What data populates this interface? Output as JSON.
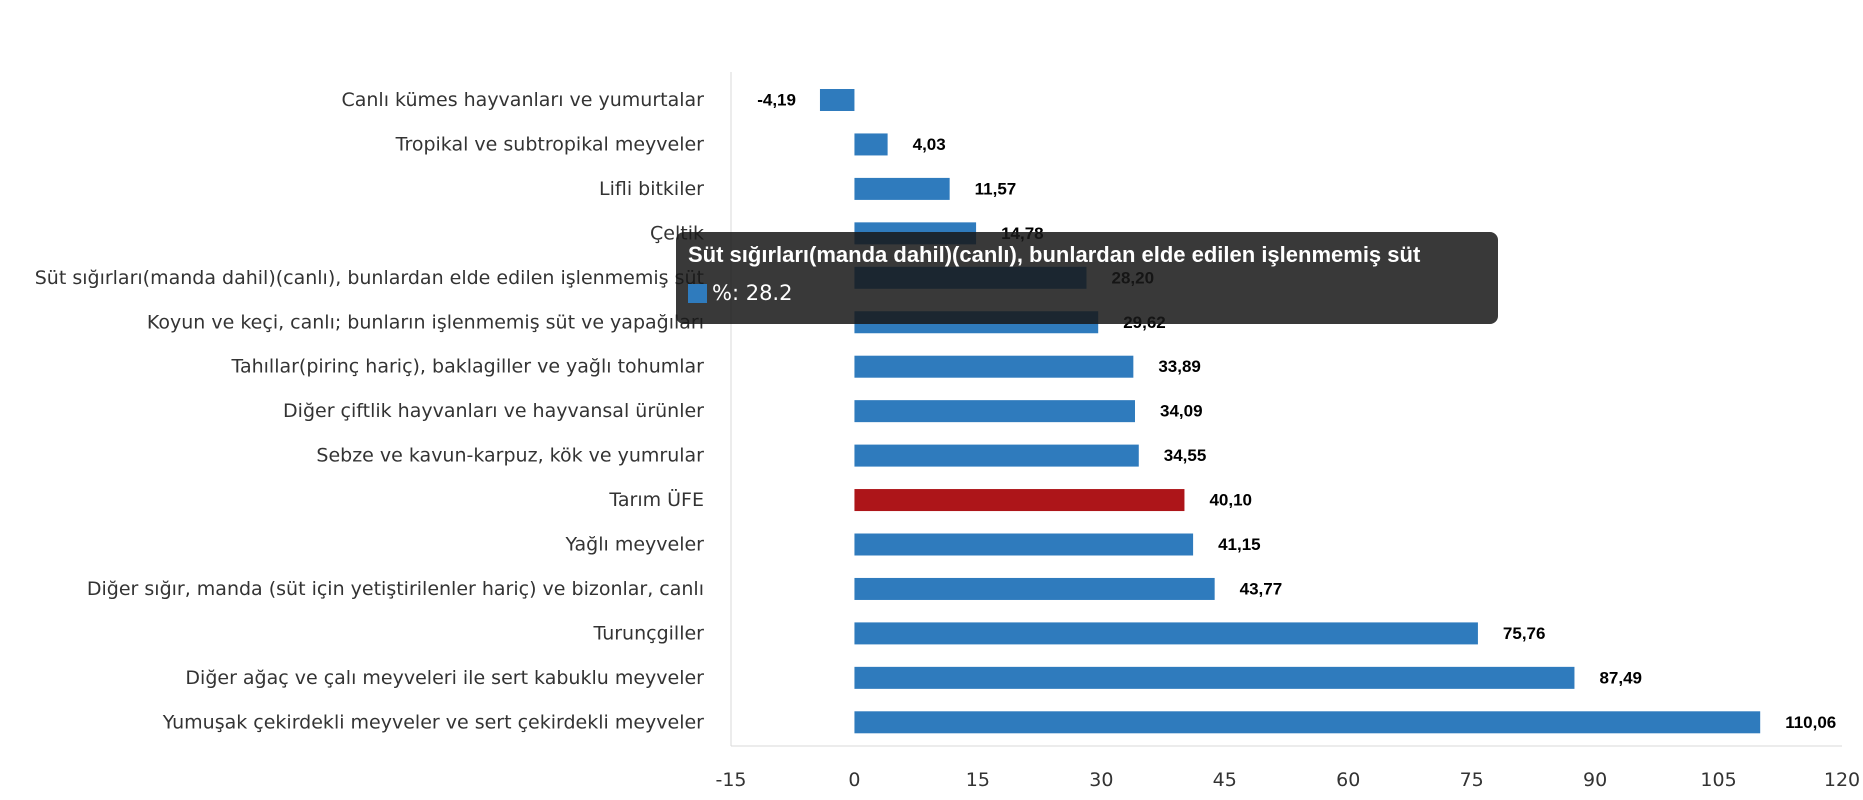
{
  "chart_data": {
    "type": "bar",
    "orientation": "horizontal",
    "categories": [
      "Canlı kümes hayvanları ve yumurtalar",
      "Tropikal ve subtropikal meyveler",
      "Lifli bitkiler",
      "Çeltik",
      "Süt sığırları(manda dahil)(canlı), bunlardan elde edilen işlenmemiş süt",
      "Koyun ve keçi, canlı; bunların işlenmemiş süt ve yapağıları",
      "Tahıllar(pirinç hariç), baklagiller ve yağlı tohumlar",
      "Diğer çiftlik hayvanları ve hayvansal ürünler",
      "Sebze ve kavun-karpuz, kök ve yumrular",
      "Tarım ÜFE",
      "Yağlı meyveler",
      "Diğer sığır, manda (süt için yetiştirilenler hariç) ve bizonlar, canlı",
      "Turunçgiller",
      "Diğer ağaç ve çalı meyveleri ile sert kabuklu meyveler",
      "Yumuşak çekirdekli meyveler ve sert çekirdekli meyveler"
    ],
    "values": [
      -4.19,
      4.03,
      11.57,
      14.78,
      28.2,
      29.62,
      33.89,
      34.09,
      34.55,
      40.1,
      41.15,
      43.77,
      75.76,
      87.49,
      110.06
    ],
    "value_labels": [
      "-4,19",
      "4,03",
      "11,57",
      "14,78",
      "28,20",
      "29,62",
      "33,89",
      "34,09",
      "34,55",
      "40,10",
      "41,15",
      "43,77",
      "75,76",
      "87,49",
      "110,06"
    ],
    "highlight_category": "Tarım ÜFE",
    "series_name": "%",
    "xlim": [
      -15,
      120
    ],
    "xticks": [
      "-15",
      "0",
      "15",
      "30",
      "45",
      "60",
      "75",
      "90",
      "105",
      "120"
    ],
    "xtick_values": [
      -15,
      0,
      15,
      30,
      45,
      60,
      75,
      90,
      105,
      120
    ],
    "grid": false,
    "colors": {
      "bar": "#2f7bbd",
      "highlight": "#ad1519",
      "axis": "#d9d9d9"
    }
  },
  "tooltip": {
    "title": "Süt sığırları(manda dahil)(canlı), bunlardan elde edilen işlenmemiş süt",
    "text": "%: 28.2",
    "swatch_color": "#2f7bbd"
  }
}
